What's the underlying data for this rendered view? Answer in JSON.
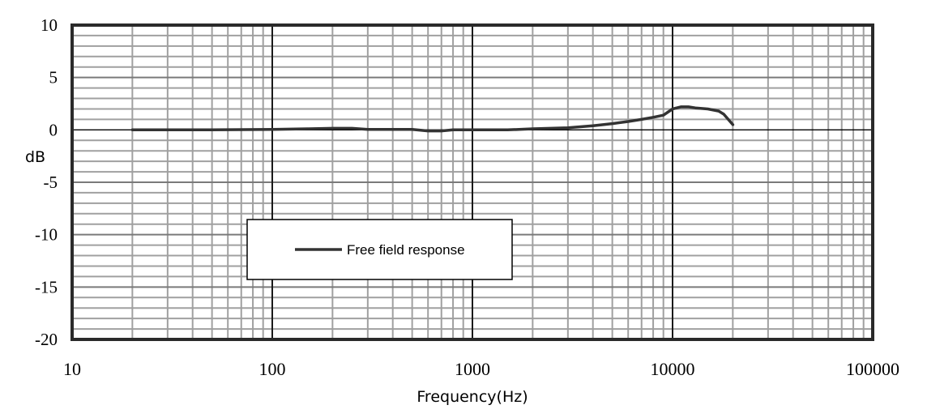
{
  "chart_data": {
    "type": "line",
    "title": "",
    "xlabel": "Frequency(Hz)",
    "ylabel": "dB",
    "x_scale": "log",
    "xlim": [
      10,
      100000
    ],
    "ylim": [
      -20,
      10
    ],
    "x_ticks": [
      "10",
      "100",
      "1000",
      "10000",
      "100000"
    ],
    "y_ticks": [
      "10",
      "5",
      "0",
      "-5",
      "-10",
      "-15",
      "-20"
    ],
    "grid": true,
    "legend": {
      "placement": "lower-left",
      "entries": [
        "Free field response"
      ]
    },
    "series": [
      {
        "name": "Free field response",
        "color": "#333333",
        "x": [
          20,
          50,
          100,
          150,
          200,
          250,
          300,
          400,
          500,
          600,
          700,
          800,
          1000,
          1500,
          2000,
          3000,
          4000,
          5000,
          6000,
          7000,
          8000,
          9000,
          10000,
          11000,
          12000,
          13000,
          15000,
          17000,
          18000,
          20000
        ],
        "y": [
          0,
          0,
          0.05,
          0.1,
          0.15,
          0.15,
          0.05,
          0.05,
          0.05,
          -0.1,
          -0.1,
          0,
          0,
          0,
          0.1,
          0.2,
          0.4,
          0.6,
          0.8,
          1.0,
          1.2,
          1.4,
          2.0,
          2.2,
          2.2,
          2.1,
          2.0,
          1.8,
          1.5,
          0.5
        ]
      }
    ]
  }
}
